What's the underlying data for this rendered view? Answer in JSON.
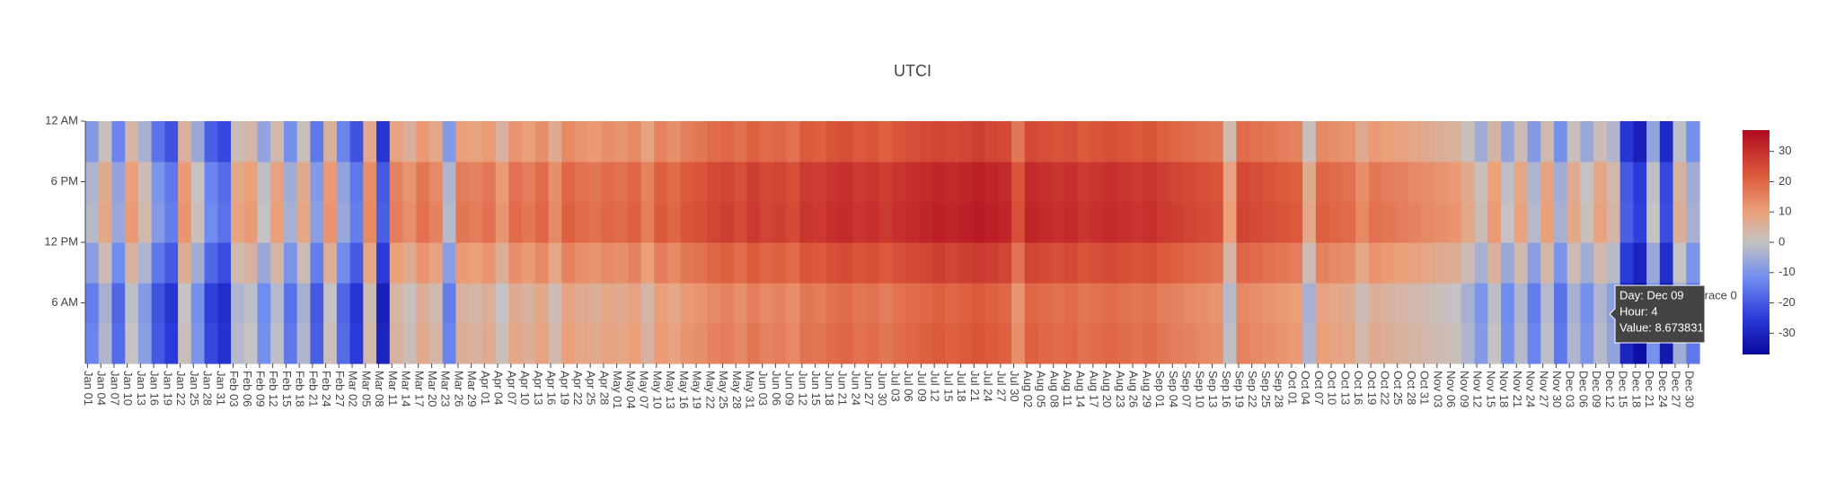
{
  "chart_data": {
    "type": "heatmap",
    "title": "UTCI",
    "x": [
      "Jan 01",
      "Jan 04",
      "Jan 07",
      "Jan 10",
      "Jan 13",
      "Jan 16",
      "Jan 19",
      "Jan 22",
      "Jan 25",
      "Jan 28",
      "Jan 31",
      "Feb 03",
      "Feb 06",
      "Feb 09",
      "Feb 12",
      "Feb 15",
      "Feb 18",
      "Feb 21",
      "Feb 24",
      "Feb 27",
      "Mar 02",
      "Mar 05",
      "Mar 08",
      "Mar 11",
      "Mar 14",
      "Mar 17",
      "Mar 20",
      "Mar 23",
      "Mar 26",
      "Mar 29",
      "Apr 01",
      "Apr 04",
      "Apr 07",
      "Apr 10",
      "Apr 13",
      "Apr 16",
      "Apr 19",
      "Apr 22",
      "Apr 25",
      "Apr 28",
      "May 01",
      "May 04",
      "May 07",
      "May 10",
      "May 13",
      "May 16",
      "May 19",
      "May 22",
      "May 25",
      "May 28",
      "May 31",
      "Jun 03",
      "Jun 06",
      "Jun 09",
      "Jun 12",
      "Jun 15",
      "Jun 18",
      "Jun 21",
      "Jun 24",
      "Jun 27",
      "Jun 30",
      "Jul 03",
      "Jul 06",
      "Jul 09",
      "Jul 12",
      "Jul 15",
      "Jul 18",
      "Jul 21",
      "Jul 24",
      "Jul 27",
      "Jul 30",
      "Aug 02",
      "Aug 05",
      "Aug 08",
      "Aug 11",
      "Aug 14",
      "Aug 17",
      "Aug 20",
      "Aug 23",
      "Aug 26",
      "Aug 29",
      "Sep 01",
      "Sep 04",
      "Sep 07",
      "Sep 10",
      "Sep 13",
      "Sep 16",
      "Sep 19",
      "Sep 22",
      "Sep 25",
      "Sep 28",
      "Oct 01",
      "Oct 04",
      "Oct 07",
      "Oct 10",
      "Oct 13",
      "Oct 16",
      "Oct 19",
      "Oct 22",
      "Oct 25",
      "Oct 28",
      "Oct 31",
      "Nov 03",
      "Nov 06",
      "Nov 09",
      "Nov 12",
      "Nov 15",
      "Nov 18",
      "Nov 21",
      "Nov 24",
      "Nov 27",
      "Nov 30",
      "Dec 03",
      "Dec 06",
      "Dec 09",
      "Dec 12",
      "Dec 15",
      "Dec 18",
      "Dec 21",
      "Dec 24",
      "Dec 27",
      "Dec 30"
    ],
    "y": [
      2,
      6,
      10,
      14,
      18,
      22
    ],
    "ylim": [
      0,
      24
    ],
    "yticks": [
      {
        "value": 6,
        "label": "6 AM"
      },
      {
        "value": 12,
        "label": "12 PM"
      },
      {
        "value": 18,
        "label": "6 PM"
      },
      {
        "value": 24,
        "label": "12 AM"
      }
    ],
    "z": [
      [
        -13,
        -3,
        -17,
        0,
        -8,
        -20,
        -25,
        1,
        -10,
        -23,
        -27,
        -2,
        0,
        -11,
        -1,
        -15,
        -3,
        -19,
        1,
        -17,
        -25,
        3,
        -30,
        5,
        2,
        7,
        4,
        -13,
        6,
        5,
        7,
        1,
        8,
        6,
        9,
        3,
        10,
        8,
        7,
        9,
        8,
        10,
        5,
        11,
        9,
        12,
        13,
        15,
        16,
        14,
        17,
        15,
        16,
        14,
        18,
        17,
        19,
        20,
        18,
        19,
        17,
        19,
        20,
        21,
        22,
        21,
        22,
        23,
        22,
        21,
        13,
        21,
        20,
        19,
        20,
        18,
        19,
        20,
        19,
        18,
        19,
        17,
        16,
        15,
        14,
        13,
        -1,
        15,
        14,
        13,
        12,
        11,
        -3,
        10,
        9,
        8,
        3,
        7,
        6,
        5,
        4,
        3,
        2,
        1,
        -3,
        -9,
        0,
        -11,
        -2,
        -13,
        -1,
        -15,
        -3,
        -10,
        -2,
        -7,
        -30,
        -35,
        -11,
        -33,
        -5,
        -15
      ],
      [
        -14,
        -4,
        -18,
        -1,
        -9,
        -21,
        -26,
        0,
        -11,
        -24,
        -28,
        -3,
        -1,
        -12,
        -2,
        -16,
        -4,
        -20,
        0,
        -18,
        -26,
        2,
        -31,
        4,
        1,
        6,
        3,
        -14,
        5,
        4,
        6,
        0,
        7,
        5,
        8,
        2,
        9,
        7,
        6,
        8,
        7,
        9,
        4,
        10,
        8,
        11,
        12,
        14,
        15,
        13,
        16,
        14,
        15,
        13,
        17,
        16,
        18,
        19,
        17,
        18,
        16,
        18,
        19,
        20,
        21,
        20,
        21,
        22,
        21,
        20,
        12,
        20,
        19,
        18,
        19,
        17,
        18,
        19,
        18,
        17,
        18,
        16,
        15,
        14,
        13,
        12,
        -2,
        14,
        13,
        12,
        11,
        10,
        -4,
        9,
        8,
        7,
        2,
        6,
        5,
        4,
        3,
        2,
        1,
        0,
        -4,
        -10,
        -1,
        -12,
        -3,
        -14,
        -2,
        -16,
        -4,
        -11,
        -3,
        -8,
        -31,
        -36,
        -12,
        -34,
        -6,
        -16
      ],
      [
        -8,
        2,
        -12,
        5,
        -3,
        -15,
        -20,
        6,
        -5,
        -18,
        -22,
        3,
        5,
        -6,
        4,
        -10,
        2,
        -14,
        6,
        -12,
        -20,
        8,
        -25,
        10,
        7,
        12,
        9,
        -8,
        11,
        10,
        12,
        6,
        13,
        11,
        14,
        8,
        15,
        13,
        12,
        14,
        13,
        15,
        10,
        16,
        14,
        17,
        18,
        20,
        21,
        19,
        22,
        20,
        21,
        19,
        23,
        22,
        24,
        25,
        23,
        24,
        22,
        24,
        25,
        26,
        27,
        26,
        27,
        28,
        27,
        26,
        18,
        26,
        25,
        24,
        25,
        23,
        24,
        25,
        24,
        23,
        24,
        22,
        21,
        20,
        19,
        18,
        4,
        20,
        19,
        18,
        17,
        16,
        2,
        15,
        14,
        13,
        8,
        12,
        11,
        10,
        9,
        8,
        7,
        6,
        2,
        -4,
        5,
        -6,
        3,
        -8,
        4,
        -10,
        2,
        -5,
        3,
        -2,
        -25,
        -30,
        -6,
        -28,
        0,
        -10
      ],
      [
        -2,
        8,
        -6,
        11,
        3,
        -9,
        -14,
        12,
        1,
        -12,
        -16,
        9,
        11,
        0,
        10,
        -4,
        8,
        -8,
        12,
        -6,
        -14,
        14,
        -19,
        16,
        13,
        18,
        15,
        -2,
        17,
        16,
        18,
        12,
        19,
        17,
        20,
        14,
        21,
        19,
        18,
        20,
        19,
        21,
        16,
        22,
        20,
        23,
        24,
        26,
        27,
        25,
        28,
        26,
        27,
        25,
        29,
        28,
        30,
        31,
        29,
        30,
        28,
        30,
        31,
        32,
        33,
        32,
        33,
        34,
        33,
        32,
        24,
        32,
        31,
        30,
        31,
        29,
        30,
        31,
        30,
        29,
        30,
        28,
        27,
        26,
        25,
        24,
        10,
        26,
        25,
        24,
        23,
        22,
        8,
        21,
        20,
        19,
        14,
        18,
        17,
        16,
        15,
        14,
        13,
        12,
        8,
        2,
        11,
        0,
        9,
        -2,
        10,
        -4,
        8,
        1,
        9,
        4,
        -19,
        -24,
        0,
        -22,
        6,
        -4
      ],
      [
        -3,
        7,
        -7,
        10,
        2,
        -10,
        -15,
        11,
        0,
        -13,
        -17,
        8,
        10,
        -1,
        9,
        -5,
        7,
        -9,
        11,
        -7,
        -15,
        13,
        -20,
        15,
        12,
        17,
        14,
        -3,
        16,
        15,
        17,
        11,
        18,
        16,
        19,
        13,
        20,
        18,
        17,
        19,
        18,
        20,
        15,
        21,
        19,
        22,
        23,
        25,
        26,
        24,
        27,
        25,
        26,
        24,
        28,
        27,
        29,
        30,
        28,
        29,
        27,
        29,
        30,
        31,
        32,
        31,
        32,
        33,
        32,
        31,
        23,
        31,
        30,
        29,
        30,
        28,
        29,
        30,
        29,
        28,
        29,
        27,
        26,
        25,
        24,
        23,
        9,
        25,
        24,
        23,
        22,
        21,
        7,
        20,
        19,
        18,
        13,
        17,
        16,
        15,
        14,
        13,
        12,
        11,
        7,
        1,
        10,
        -1,
        8,
        -3,
        9,
        -5,
        7,
        0,
        8,
        3,
        -20,
        -25,
        -1,
        -23,
        5,
        -5
      ],
      [
        -9,
        1,
        -13,
        4,
        -4,
        -16,
        -21,
        5,
        -6,
        -19,
        -23,
        2,
        4,
        -7,
        3,
        -11,
        1,
        -15,
        5,
        -13,
        -21,
        7,
        -26,
        9,
        6,
        11,
        8,
        -9,
        10,
        9,
        11,
        5,
        12,
        10,
        13,
        7,
        14,
        12,
        11,
        13,
        12,
        14,
        9,
        15,
        13,
        16,
        17,
        19,
        20,
        18,
        21,
        19,
        20,
        18,
        22,
        21,
        23,
        24,
        22,
        23,
        21,
        23,
        24,
        25,
        26,
        25,
        26,
        27,
        26,
        25,
        17,
        25,
        24,
        23,
        24,
        22,
        23,
        24,
        23,
        22,
        23,
        21,
        20,
        19,
        18,
        17,
        3,
        19,
        18,
        17,
        16,
        15,
        1,
        14,
        13,
        12,
        7,
        11,
        10,
        9,
        8,
        7,
        6,
        5,
        1,
        -5,
        4,
        -7,
        2,
        -9,
        3,
        -11,
        1,
        -6,
        2,
        -3,
        -26,
        -31,
        -7,
        -29,
        -1,
        -11
      ]
    ],
    "zlim": [
      -37,
      37
    ],
    "zticks": [
      -30,
      -20,
      -10,
      0,
      10,
      20,
      30
    ],
    "colorscale": [
      [
        -37,
        "#08089a"
      ],
      [
        -25,
        "#2a3ad8"
      ],
      [
        -12,
        "#6f8cf0"
      ],
      [
        0,
        "#c4c2c2"
      ],
      [
        10,
        "#eba07a"
      ],
      [
        22,
        "#dc5a3c"
      ],
      [
        37,
        "#b20a20"
      ]
    ],
    "hover": {
      "lines": [
        "Day: Dec 09",
        "Hour: 4",
        "Value: 8.673831"
      ],
      "trace": "trace 0"
    }
  }
}
